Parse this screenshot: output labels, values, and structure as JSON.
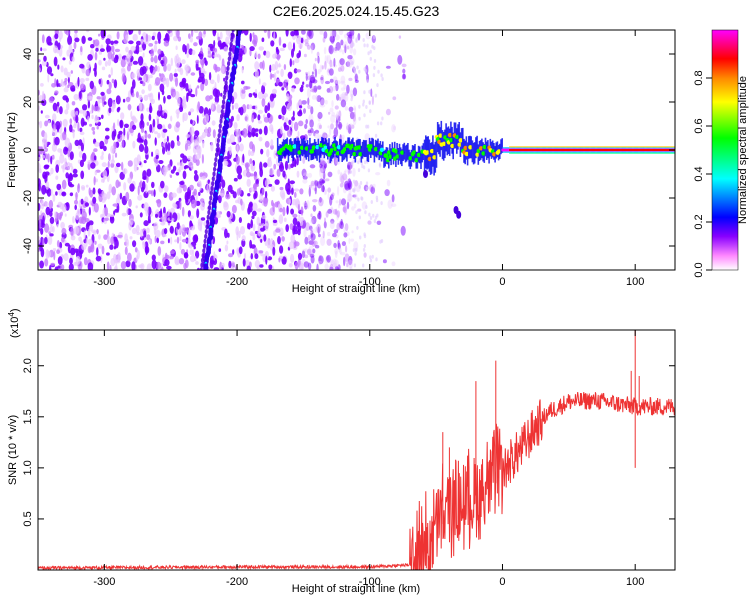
{
  "figure": {
    "title": "C2E6.2025.024.15.45.G23"
  },
  "chart_data": [
    {
      "type": "heatmap",
      "xlabel": "Height of straight line (km)",
      "ylabel": "Frequency (Hz)",
      "xlim": [
        -350,
        130
      ],
      "ylim": [
        -50,
        50
      ],
      "x_ticks": [
        -300,
        -200,
        -100,
        0,
        100
      ],
      "y_ticks": [
        -40,
        -20,
        0,
        20,
        40
      ],
      "colorbar": {
        "label": "Normalized spectral amplitude",
        "range": [
          0,
          1
        ],
        "ticks": [
          0.0,
          0.2,
          0.4,
          0.6,
          0.8
        ],
        "tick_labels": [
          "0.0",
          "0.2",
          "0.4",
          "0.6",
          "0.8"
        ],
        "colors": [
          "#ffffff",
          "#ff88ff",
          "#8800ff",
          "#0000ff",
          "#00ffff",
          "#00ff00",
          "#ffff00",
          "#ff8800",
          "#ff0000",
          "#ff00ff"
        ]
      },
      "features": {
        "noise_region_x": [
          -350,
          -110
        ],
        "streak": {
          "x_at_top": -198,
          "x_at_bottom": -224
        },
        "carrier": {
          "start_x": -170,
          "peak_freq": 0
        }
      }
    },
    {
      "type": "line",
      "xlabel": "Height of straight line (km)",
      "ylabel": "SNR (10 * v/v)",
      "scale_label": "(x10",
      "scale_exponent": "4",
      "xlim": [
        -350,
        130
      ],
      "ylim": [
        0,
        2.35
      ],
      "x_ticks": [
        -300,
        -200,
        -100,
        0,
        100
      ],
      "y_ticks": [
        0.5,
        1.0,
        1.5,
        2.0
      ],
      "y_tick_labels": [
        "0.5",
        "1.0",
        "1.5",
        "2.0"
      ],
      "line_color": "#ee3333",
      "series_trend": [
        {
          "x": -350,
          "y": 0.02
        },
        {
          "x": -200,
          "y": 0.03
        },
        {
          "x": -100,
          "y": 0.03
        },
        {
          "x": -70,
          "y": 0.05
        },
        {
          "x": -55,
          "y": 0.2
        },
        {
          "x": -45,
          "y": 0.45
        },
        {
          "x": -35,
          "y": 0.55
        },
        {
          "x": -25,
          "y": 0.6
        },
        {
          "x": -15,
          "y": 0.7
        },
        {
          "x": -5,
          "y": 0.85
        },
        {
          "x": 5,
          "y": 1.05
        },
        {
          "x": 15,
          "y": 1.2
        },
        {
          "x": 25,
          "y": 1.4
        },
        {
          "x": 35,
          "y": 1.55
        },
        {
          "x": 50,
          "y": 1.65
        },
        {
          "x": 70,
          "y": 1.66
        },
        {
          "x": 90,
          "y": 1.62
        },
        {
          "x": 100,
          "y": 1.6
        },
        {
          "x": 130,
          "y": 1.6
        }
      ],
      "spikes": [
        {
          "x": 100,
          "y": 2.35
        },
        {
          "x": 97,
          "y": 1.95
        },
        {
          "x": 103,
          "y": 1.9
        },
        {
          "x": -5,
          "y": 2.05
        },
        {
          "x": -20,
          "y": 1.85
        },
        {
          "x": -45,
          "y": 1.35
        },
        {
          "x": -40,
          "y": 1.2
        },
        {
          "x": 100,
          "y": 1.0
        }
      ]
    }
  ]
}
